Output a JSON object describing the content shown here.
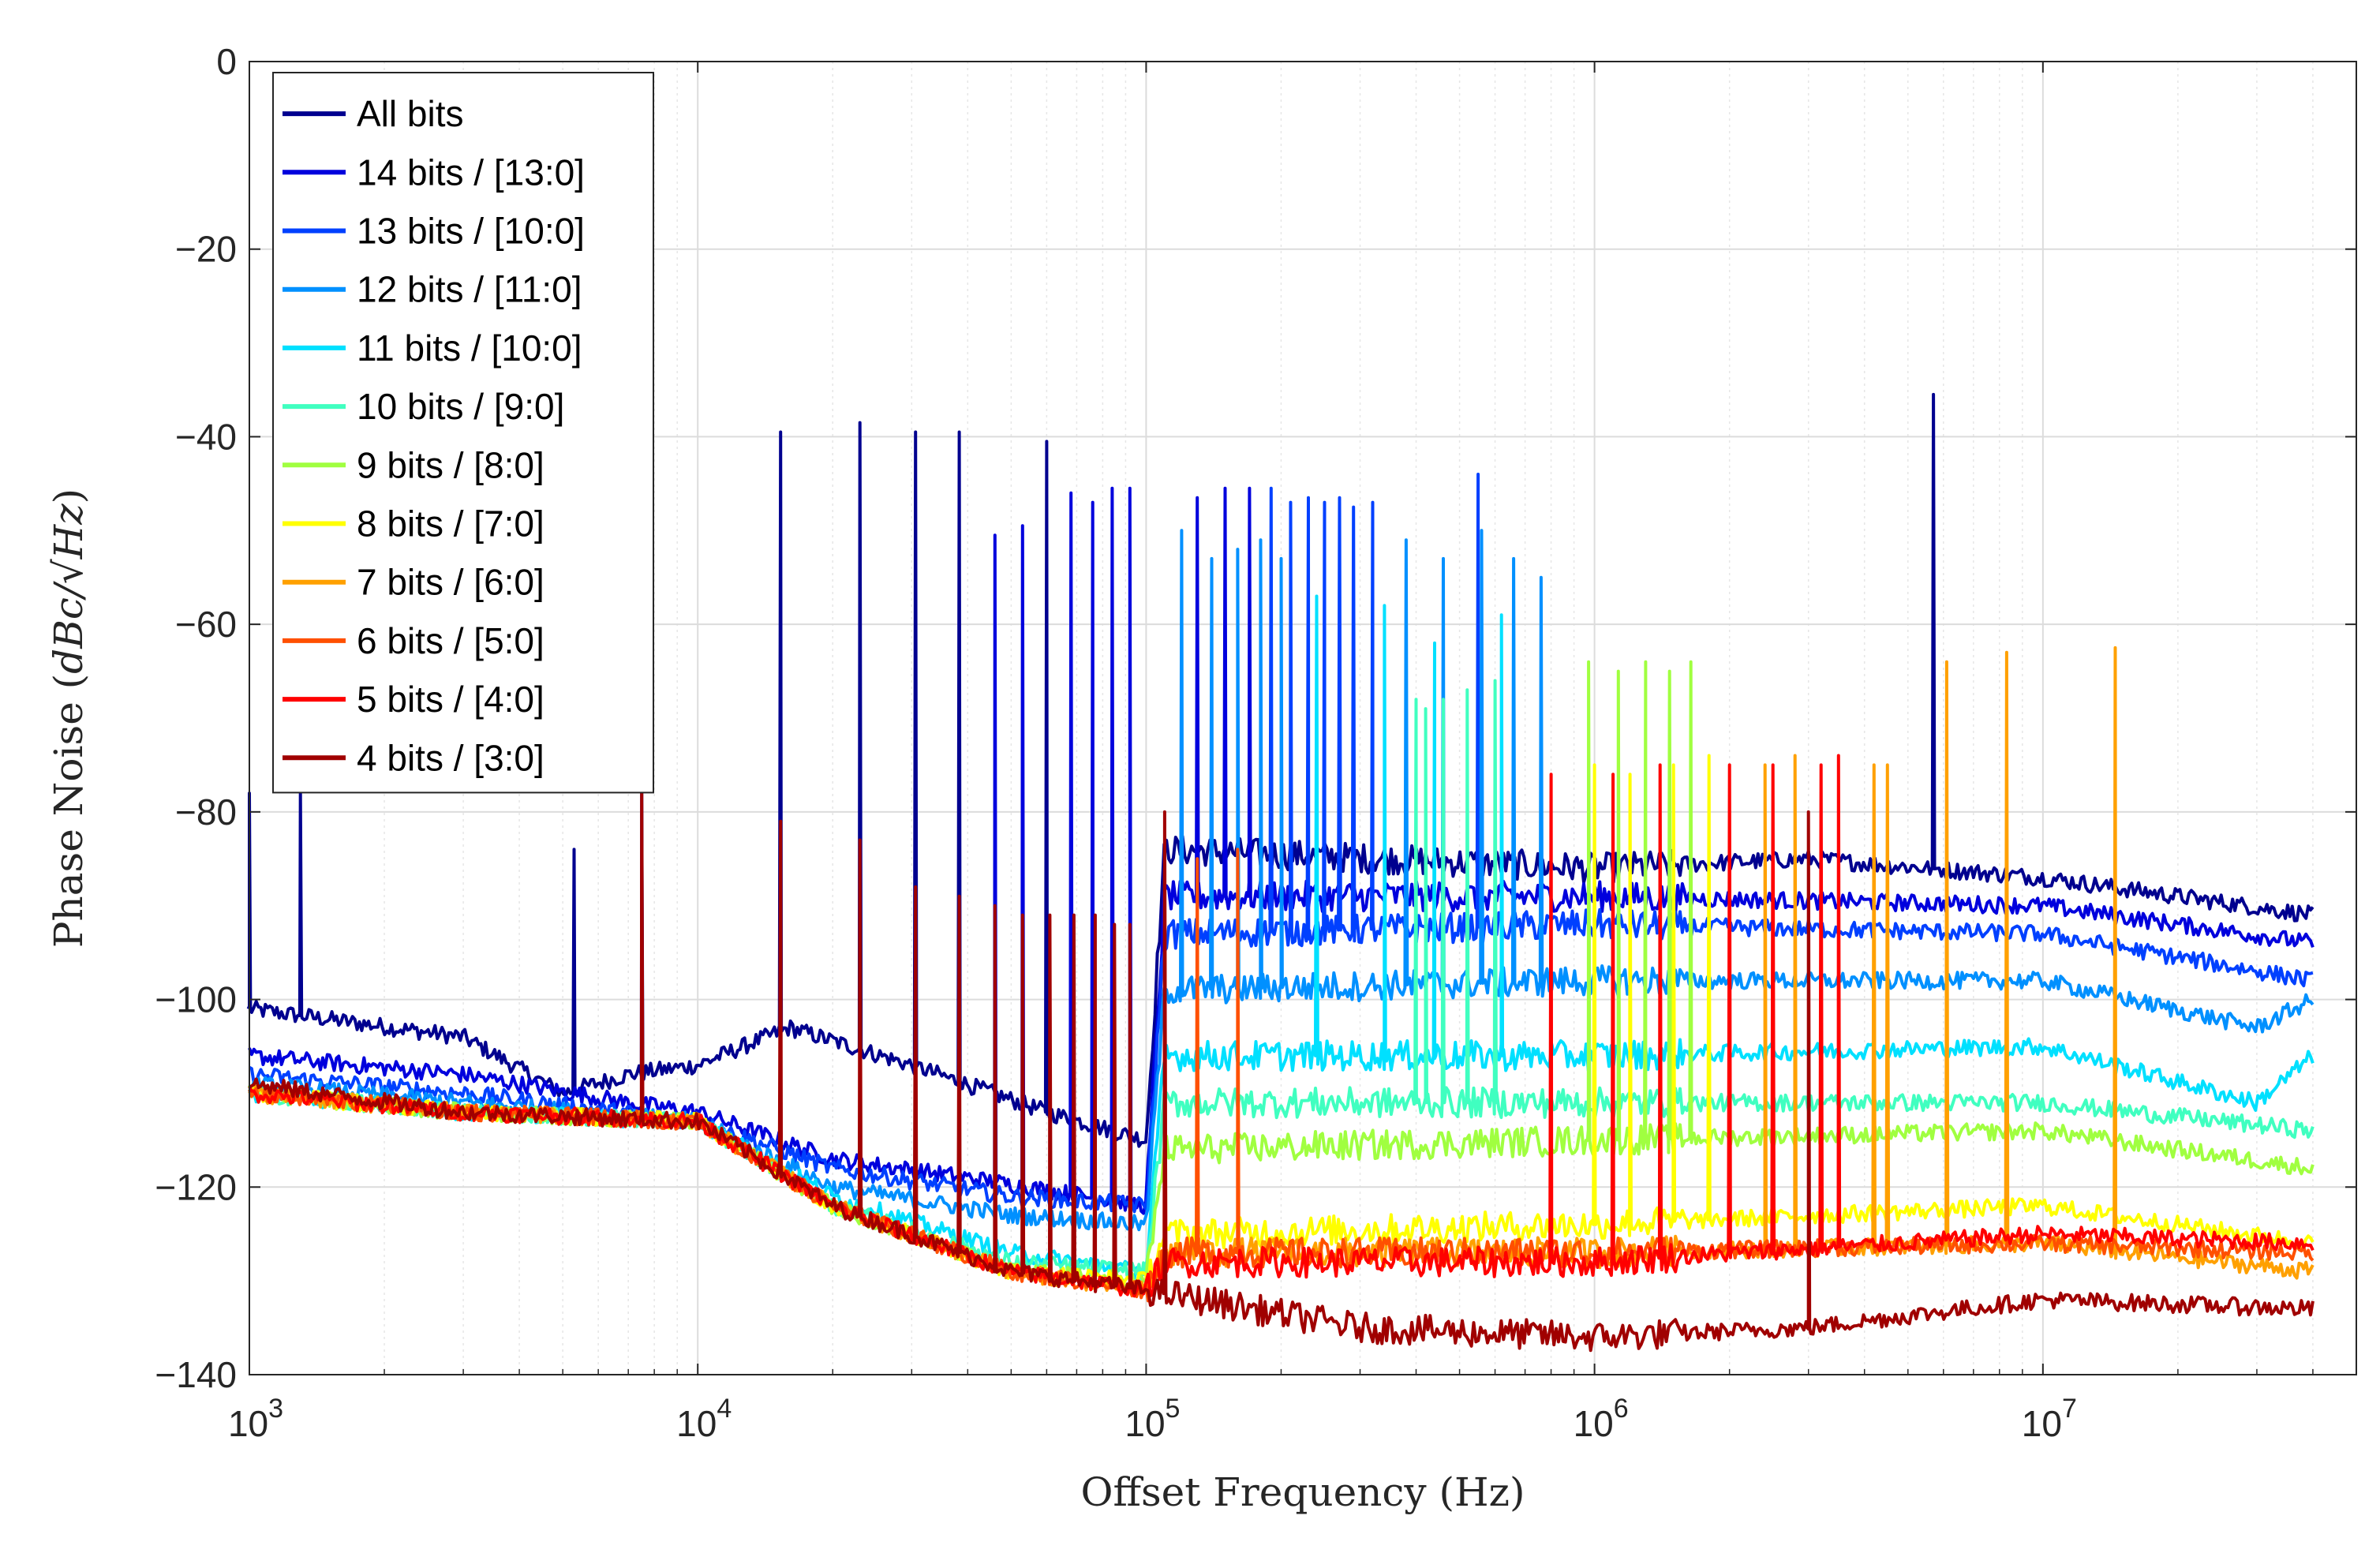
{
  "chart_data": {
    "type": "line",
    "title": "",
    "xlabel": "Offset Frequency (Hz)",
    "ylabel_prefix": "Phase Noise (",
    "ylabel_unit": "dBc/√Hz",
    "ylabel_suffix": ")",
    "xscale": "log",
    "xlim": [
      1000,
      50000000
    ],
    "ylim": [
      -140,
      0
    ],
    "grid": true,
    "legend_position": "top-left",
    "x_ticks": [
      {
        "value": 1000,
        "base": "10",
        "exp": "3"
      },
      {
        "value": 10000,
        "base": "10",
        "exp": "4"
      },
      {
        "value": 100000,
        "base": "10",
        "exp": "5"
      },
      {
        "value": 1000000,
        "base": "10",
        "exp": "6"
      },
      {
        "value": 10000000,
        "base": "10",
        "exp": "7"
      }
    ],
    "y_ticks": [
      {
        "value": 0,
        "label": "0"
      },
      {
        "value": -20,
        "label": "−20"
      },
      {
        "value": -40,
        "label": "−40"
      },
      {
        "value": -60,
        "label": "−60"
      },
      {
        "value": -80,
        "label": "−80"
      },
      {
        "value": -100,
        "label": "−100"
      },
      {
        "value": -120,
        "label": "−120"
      },
      {
        "value": -140,
        "label": "−140"
      }
    ],
    "series": [
      {
        "name": "All bits",
        "color": "#00008F",
        "floor": [
          [
            1000,
            -101
          ],
          [
            3000,
            -104
          ],
          [
            5000,
            -110
          ],
          [
            7000,
            -108
          ],
          [
            10000,
            -107
          ],
          [
            16000,
            -103
          ],
          [
            30000,
            -107
          ],
          [
            60000,
            -112
          ],
          [
            100000,
            -115
          ],
          [
            110000,
            -84
          ],
          [
            1000000,
            -86
          ],
          [
            3000000,
            -85
          ],
          [
            10000000,
            -87
          ],
          [
            40000000,
            -91
          ]
        ],
        "spurs": [
          [
            1000,
            -78
          ],
          [
            1300,
            -78
          ],
          [
            5300,
            -84
          ],
          [
            7500,
            -78
          ],
          [
            15300,
            -39.5
          ],
          [
            23000,
            -38.5
          ],
          [
            30600,
            -39.5
          ],
          [
            38300,
            -39.5
          ],
          [
            60000,
            -40.5
          ],
          [
            5700000,
            -35.5
          ]
        ]
      },
      {
        "name": "14 bits / [13:0]",
        "color": "#0000DD",
        "floor": [
          [
            1000,
            -106
          ],
          [
            3000,
            -108
          ],
          [
            7000,
            -111
          ],
          [
            10000,
            -112
          ],
          [
            20000,
            -117
          ],
          [
            40000,
            -119
          ],
          [
            100000,
            -122
          ],
          [
            110000,
            -89
          ],
          [
            1000000,
            -89
          ],
          [
            10000000,
            -90
          ],
          [
            40000000,
            -94
          ]
        ],
        "spurs": [
          [
            46000,
            -50.5
          ],
          [
            53000,
            -49.5
          ],
          [
            68000,
            -46
          ],
          [
            76000,
            -47
          ],
          [
            84000,
            -45.5
          ],
          [
            92000,
            -45.5
          ],
          [
            130000,
            -46.5
          ],
          [
            150000,
            -45.5
          ],
          [
            170000,
            -45.5
          ]
        ]
      },
      {
        "name": "13 bits / [10:0]",
        "color": "#0040FF",
        "floor": [
          [
            1000,
            -108
          ],
          [
            3000,
            -110
          ],
          [
            10000,
            -113
          ],
          [
            20000,
            -118
          ],
          [
            50000,
            -121
          ],
          [
            100000,
            -122
          ],
          [
            110000,
            -93
          ],
          [
            1000000,
            -92
          ],
          [
            10000000,
            -93
          ],
          [
            40000000,
            -98
          ]
        ],
        "spurs": [
          [
            190000,
            -45.5
          ],
          [
            210000,
            -47
          ],
          [
            230000,
            -46.5
          ],
          [
            250000,
            -47
          ],
          [
            270000,
            -46.5
          ],
          [
            290000,
            -47.5
          ],
          [
            320000,
            -47
          ],
          [
            550000,
            -44
          ]
        ]
      },
      {
        "name": "12 bits / [11:0]",
        "color": "#0090FF",
        "floor": [
          [
            1000,
            -109
          ],
          [
            3000,
            -111
          ],
          [
            10000,
            -113
          ],
          [
            20000,
            -120
          ],
          [
            50000,
            -123
          ],
          [
            100000,
            -124
          ],
          [
            110000,
            -99
          ],
          [
            1000000,
            -98
          ],
          [
            10000000,
            -98
          ],
          [
            30000000,
            -103
          ],
          [
            40000000,
            -100
          ]
        ],
        "spurs": [
          [
            120000,
            -50
          ],
          [
            140000,
            -53
          ],
          [
            160000,
            -52
          ],
          [
            180000,
            -51
          ],
          [
            200000,
            -53
          ],
          [
            380000,
            -51
          ],
          [
            460000,
            -53
          ],
          [
            560000,
            -50
          ],
          [
            660000,
            -53
          ],
          [
            760000,
            -55
          ]
        ]
      },
      {
        "name": "11 bits / [10:0]",
        "color": "#00E0FF",
        "floor": [
          [
            1000,
            -110
          ],
          [
            3000,
            -112
          ],
          [
            10000,
            -113
          ],
          [
            20000,
            -121
          ],
          [
            50000,
            -127
          ],
          [
            100000,
            -129
          ],
          [
            110000,
            -106
          ],
          [
            1000000,
            -106
          ],
          [
            10000000,
            -105
          ],
          [
            30000000,
            -111
          ],
          [
            40000000,
            -106
          ]
        ],
        "spurs": [
          [
            240000,
            -57
          ],
          [
            340000,
            -58
          ],
          [
            440000,
            -62
          ],
          [
            620000,
            -59
          ]
        ]
      },
      {
        "name": "10 bits / [9:0]",
        "color": "#40FFC0",
        "floor": [
          [
            1000,
            -110
          ],
          [
            3000,
            -112
          ],
          [
            10000,
            -113
          ],
          [
            20000,
            -122
          ],
          [
            50000,
            -128
          ],
          [
            100000,
            -129
          ],
          [
            110000,
            -111
          ],
          [
            1000000,
            -111
          ],
          [
            10000000,
            -111
          ],
          [
            40000000,
            -114
          ]
        ],
        "spurs": [
          [
            400000,
            -68
          ],
          [
            420000,
            -69
          ],
          [
            460000,
            -68
          ],
          [
            520000,
            -67
          ],
          [
            600000,
            -66
          ]
        ]
      },
      {
        "name": "9 bits / [8:0]",
        "color": "#A0FF40",
        "floor": [
          [
            1000,
            -110
          ],
          [
            3000,
            -112
          ],
          [
            10000,
            -113
          ],
          [
            20000,
            -122
          ],
          [
            50000,
            -129
          ],
          [
            100000,
            -130
          ],
          [
            110000,
            -116
          ],
          [
            1000000,
            -115
          ],
          [
            10000000,
            -114
          ],
          [
            40000000,
            -118
          ]
        ],
        "spurs": [
          [
            970000,
            -64
          ],
          [
            1130000,
            -65
          ],
          [
            1300000,
            -64
          ],
          [
            1470000,
            -65
          ],
          [
            1640000,
            -64
          ]
        ]
      },
      {
        "name": "8 bits / [7:0]",
        "color": "#FFFF00",
        "floor": [
          [
            1000,
            -110
          ],
          [
            3000,
            -112
          ],
          [
            10000,
            -113
          ],
          [
            20000,
            -122
          ],
          [
            50000,
            -129
          ],
          [
            100000,
            -130
          ],
          [
            110000,
            -125
          ],
          [
            1000000,
            -124
          ],
          [
            10000000,
            -122
          ],
          [
            40000000,
            -126
          ]
        ],
        "spurs": [
          [
            1000000,
            -75
          ],
          [
            1200000,
            -76
          ],
          [
            1500000,
            -75
          ],
          [
            1800000,
            -74
          ]
        ]
      },
      {
        "name": "7 bits / [6:0]",
        "color": "#FFA000",
        "floor": [
          [
            1000,
            -110
          ],
          [
            3000,
            -112
          ],
          [
            10000,
            -113
          ],
          [
            20000,
            -122
          ],
          [
            50000,
            -129
          ],
          [
            100000,
            -131
          ],
          [
            110000,
            -127
          ],
          [
            1000000,
            -127
          ],
          [
            10000000,
            -126
          ],
          [
            40000000,
            -129
          ]
        ],
        "spurs": [
          [
            2400000,
            -75
          ],
          [
            2800000,
            -74
          ],
          [
            4200000,
            -75
          ],
          [
            4500000,
            -75
          ],
          [
            6100000,
            -64
          ],
          [
            8300000,
            -63
          ],
          [
            14500000,
            -62.5
          ]
        ]
      },
      {
        "name": "6 bits / [5:0]",
        "color": "#FF5000",
        "floor": [
          [
            1000,
            -110
          ],
          [
            3000,
            -112
          ],
          [
            10000,
            -113
          ],
          [
            20000,
            -122
          ],
          [
            50000,
            -129
          ],
          [
            100000,
            -131
          ],
          [
            110000,
            -127
          ],
          [
            1000000,
            -127
          ],
          [
            10000000,
            -126
          ],
          [
            40000000,
            -127
          ]
        ],
        "spurs": [
          [
            110000,
            -86
          ],
          [
            130000,
            -85
          ],
          [
            160000,
            -84
          ]
        ]
      },
      {
        "name": "5 bits / [4:0]",
        "color": "#FF0000",
        "floor": [
          [
            1000,
            -110
          ],
          [
            3000,
            -112
          ],
          [
            10000,
            -113
          ],
          [
            20000,
            -122
          ],
          [
            50000,
            -129
          ],
          [
            100000,
            -131
          ],
          [
            110000,
            -128
          ],
          [
            1000000,
            -128
          ],
          [
            10000000,
            -125
          ],
          [
            40000000,
            -126
          ]
        ],
        "spurs": [
          [
            800000,
            -76
          ],
          [
            1100000,
            -76
          ],
          [
            1400000,
            -75
          ],
          [
            2000000,
            -75
          ],
          [
            2500000,
            -75
          ],
          [
            3200000,
            -75
          ],
          [
            3500000,
            -74
          ]
        ]
      },
      {
        "name": "4 bits / [3:0]",
        "color": "#A00000",
        "floor": [
          [
            1000,
            -109
          ],
          [
            3000,
            -112
          ],
          [
            10000,
            -113
          ],
          [
            20000,
            -122
          ],
          [
            50000,
            -129
          ],
          [
            100000,
            -131
          ],
          [
            300000,
            -135
          ],
          [
            1000000,
            -136
          ],
          [
            3000000,
            -135
          ],
          [
            10000000,
            -132
          ],
          [
            40000000,
            -133
          ]
        ],
        "spurs": [
          [
            7500,
            -78
          ],
          [
            15300,
            -81
          ],
          [
            23000,
            -83
          ],
          [
            30600,
            -88
          ],
          [
            38300,
            -89
          ],
          [
            46000,
            -90
          ],
          [
            53000,
            -91
          ],
          [
            61000,
            -91
          ],
          [
            69000,
            -91
          ],
          [
            77000,
            -91
          ],
          [
            85000,
            -92
          ],
          [
            92000,
            -92
          ],
          [
            110000,
            -80
          ],
          [
            3000000,
            -80
          ]
        ]
      }
    ]
  }
}
